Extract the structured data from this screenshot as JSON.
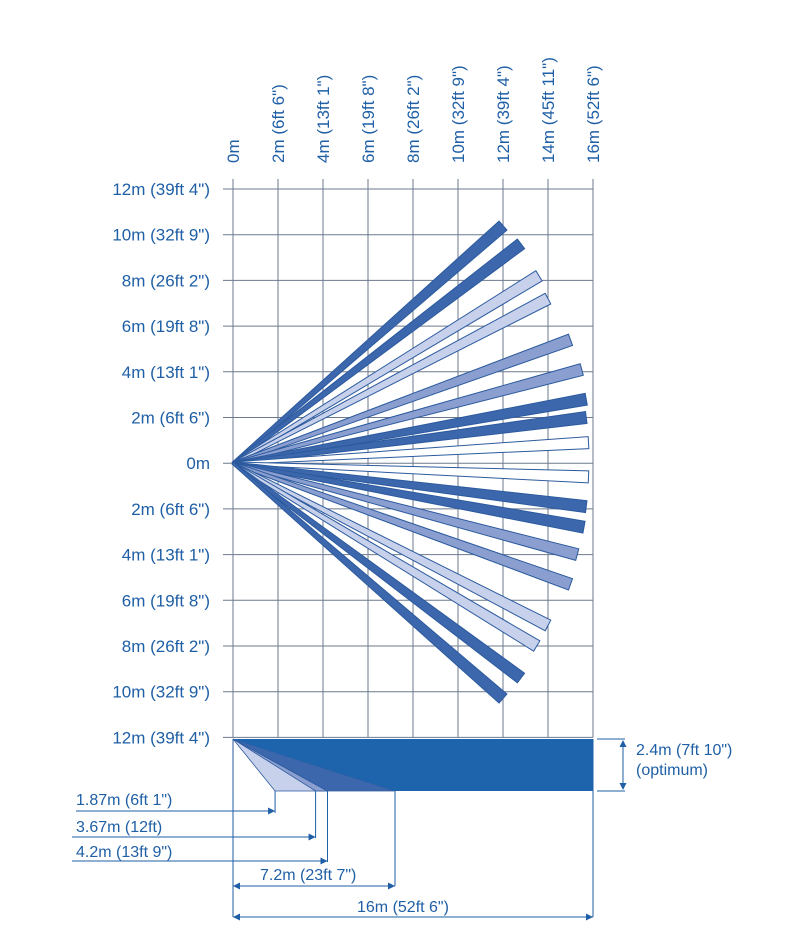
{
  "top_axis_labels": [
    "0m",
    "2m (6ft 6\")",
    "4m (13ft 1\")",
    "6m (19ft 8\")",
    "8m (26ft 2\")",
    "10m (32ft 9\")",
    "12m (39ft 4\")",
    "14m (45ft 11\")",
    "16m (52ft 6\")"
  ],
  "left_axis_labels": [
    "12m (39ft 4\")",
    "10m (32ft 9\")",
    "8m (26ft 2\")",
    "6m (19ft 8\")",
    "4m (13ft 1\")",
    "2m (6ft 6\")",
    "0m",
    "2m (6ft 6\")",
    "4m (13ft 1\")",
    "6m (19ft 8\")",
    "8m (26ft 2\")",
    "10m (32ft 9\")",
    "12m (39ft 4\")"
  ],
  "side_view": {
    "height_label": "2.4m (7ft 10\")",
    "height_note": "(optimum)",
    "distances": [
      "1.87m (6ft 1\")",
      "3.67m (12ft)",
      "4.2m (13ft 9\")",
      "7.2m (23ft 7\")",
      "16m (52ft 6\")"
    ]
  },
  "beams": [
    {
      "end_x": 12.0,
      "end_y": 10.4,
      "shade": "dark"
    },
    {
      "end_x": 12.8,
      "end_y": 9.6,
      "shade": "dark"
    },
    {
      "end_x": 13.6,
      "end_y": 8.2,
      "shade": "light"
    },
    {
      "end_x": 14.0,
      "end_y": 7.2,
      "shade": "light"
    },
    {
      "end_x": 15.0,
      "end_y": 5.4,
      "shade": "medium"
    },
    {
      "end_x": 15.5,
      "end_y": 4.1,
      "shade": "medium"
    },
    {
      "end_x": 15.7,
      "end_y": 2.8,
      "shade": "dark"
    },
    {
      "end_x": 15.7,
      "end_y": 2.0,
      "shade": "dark"
    },
    {
      "end_x": 15.8,
      "end_y": 0.9,
      "shade": "white"
    },
    {
      "end_x": 15.8,
      "end_y": -0.6,
      "shade": "white"
    },
    {
      "end_x": 15.7,
      "end_y": -1.9,
      "shade": "dark"
    },
    {
      "end_x": 15.6,
      "end_y": -2.8,
      "shade": "dark"
    },
    {
      "end_x": 15.3,
      "end_y": -4.0,
      "shade": "medium"
    },
    {
      "end_x": 15.0,
      "end_y": -5.3,
      "shade": "medium"
    },
    {
      "end_x": 14.0,
      "end_y": -7.1,
      "shade": "light"
    },
    {
      "end_x": 13.5,
      "end_y": -8.0,
      "shade": "light"
    },
    {
      "end_x": 12.8,
      "end_y": -9.4,
      "shade": "dark"
    },
    {
      "end_x": 12.0,
      "end_y": -10.3,
      "shade": "dark"
    }
  ],
  "colors": {
    "text": "#1f5fa6",
    "grid": "#6c7a8e",
    "dark": "#3c67ad",
    "medium": "#8a9ed0",
    "light": "#c7d1ec",
    "white": "#ffffff",
    "solid": "#1e64ad",
    "outline": "#2c5a9e"
  }
}
